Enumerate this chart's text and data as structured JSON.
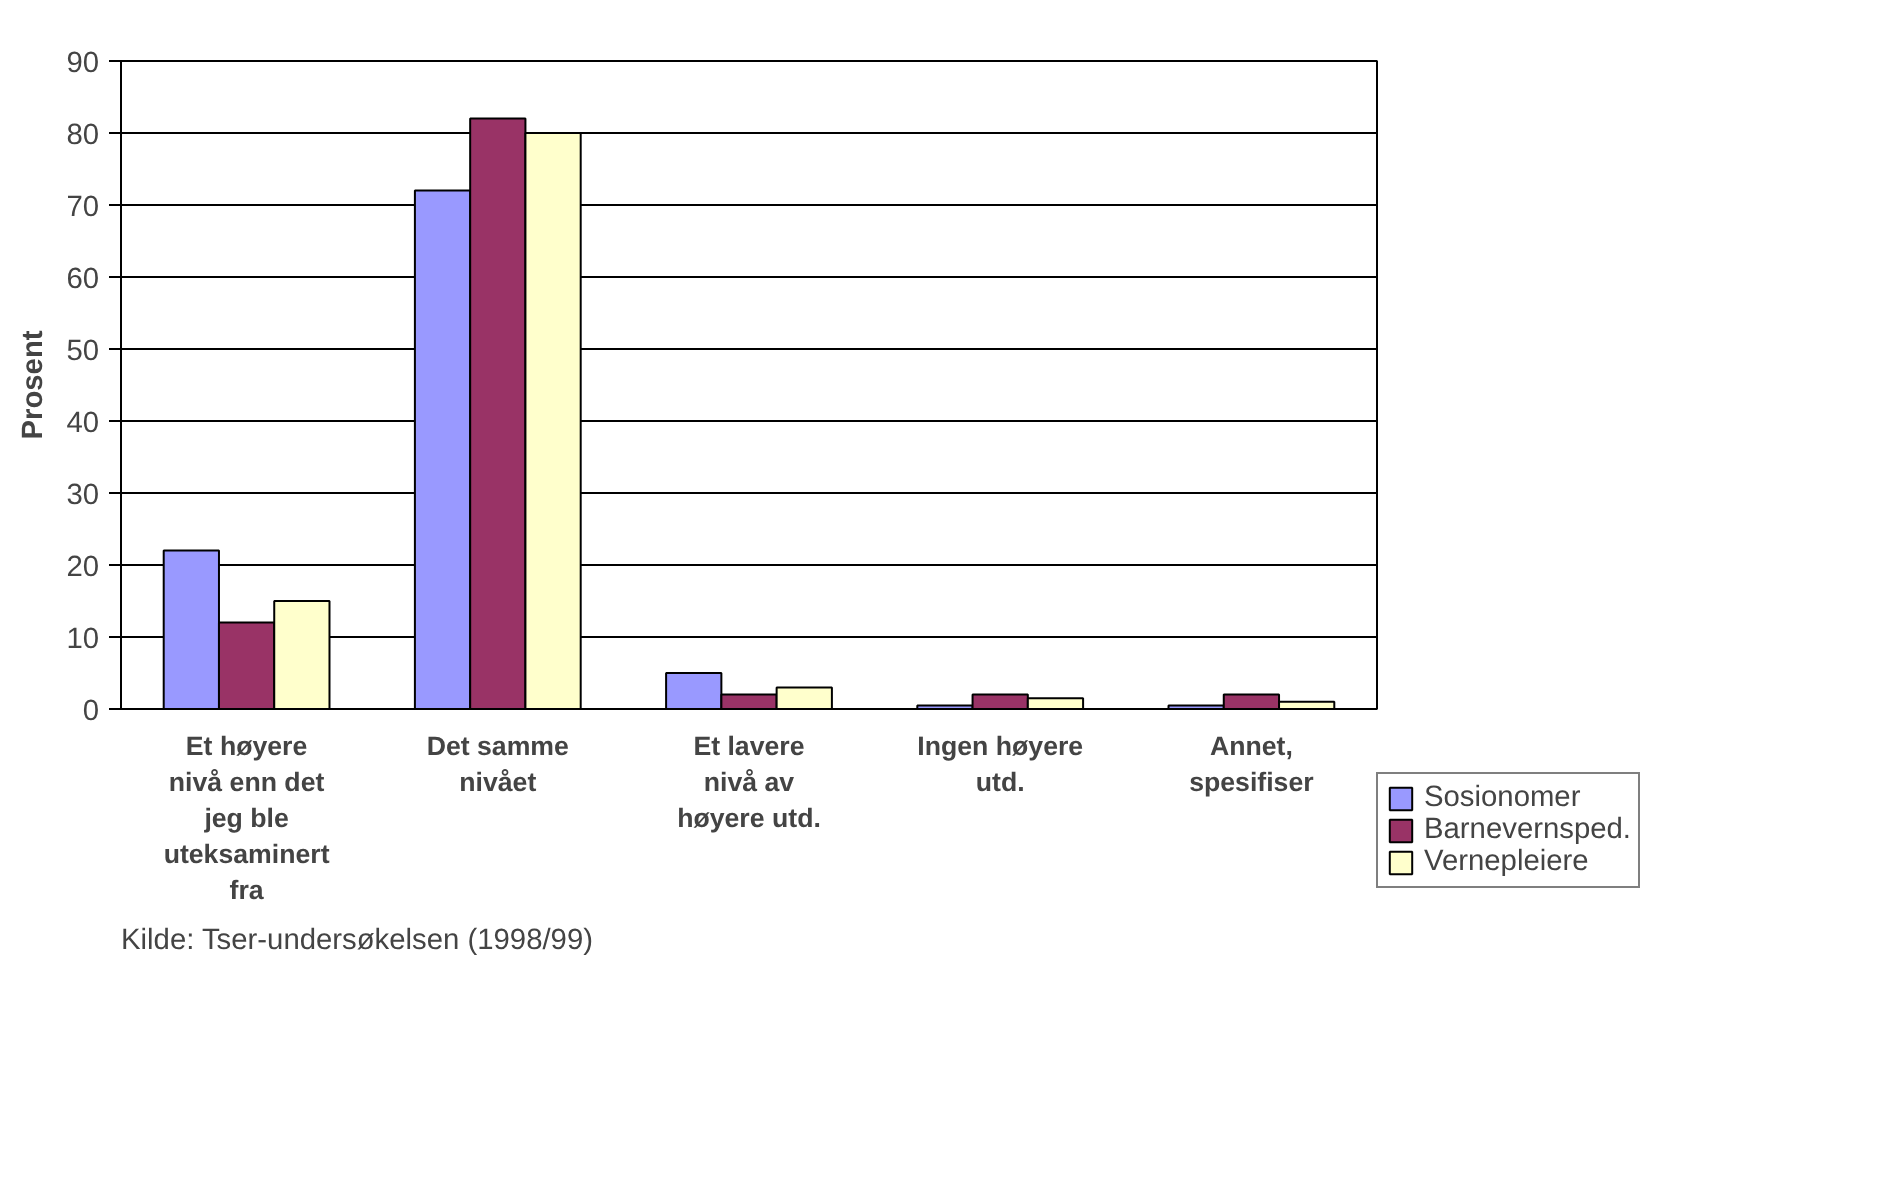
{
  "chart_data": {
    "type": "bar",
    "ylabel": "Prosent",
    "categories": [
      "Et høyere nivå enn det jeg ble uteksaminert fra",
      "Det samme nivået",
      "Et lavere nivå av høyere utd.",
      "Ingen høyere utd.",
      "Annet, spesifiser"
    ],
    "series": [
      {
        "name": "Sosionomer",
        "color": "#9999ff",
        "values": [
          22,
          72,
          5,
          0.5,
          0.5
        ]
      },
      {
        "name": "Barnevernsped.",
        "color": "#993366",
        "values": [
          12,
          82,
          2,
          2,
          2
        ]
      },
      {
        "name": "Vernepleiere",
        "color": "#ffffcc",
        "values": [
          15,
          80,
          3,
          1.5,
          1
        ]
      }
    ],
    "ylim": [
      0,
      90
    ],
    "yticks": [
      0,
      10,
      20,
      30,
      40,
      50,
      60,
      70,
      80,
      90
    ],
    "grid": "y",
    "legend": "right",
    "annotations": [
      "Kilde: Tser-undersøkelsen (1998/99)"
    ]
  }
}
